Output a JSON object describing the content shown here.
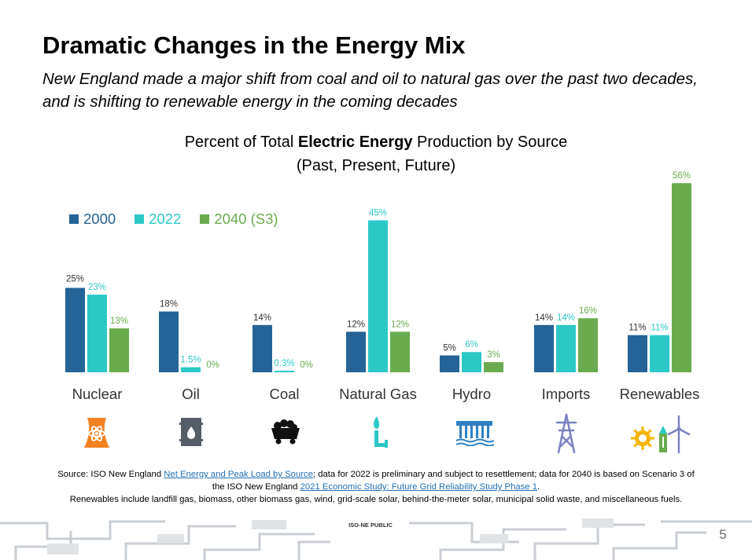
{
  "slide": {
    "title": "Dramatic Changes in the Energy Mix",
    "subtitle": "New England made a major shift from coal and oil to natural gas over the past two decades, and is shifting to renewable energy in the coming decades",
    "chart_title_plain1": "Percent of Total ",
    "chart_title_bold": "Electric Energy",
    "chart_title_plain2": " Production by Source",
    "chart_title_line2": "(Past, Present, Future)",
    "public_label": "ISO-NE PUBLIC",
    "page_number": "5"
  },
  "footer": {
    "l1_a": "Source: ISO New England ",
    "l1_link": "Net Energy and Peak Load by Source",
    "l1_b": "; data for 2022 is preliminary and subject to resettlement; data for 2040 is based on Scenario 3 of",
    "l2_a": "the ISO New England ",
    "l2_link": "2021 Economic Study: Future Grid Reliability Study Phase 1",
    "l2_b": ".",
    "l3": "Renewables include landfill gas, biomass, other biomass gas, wind, grid-scale solar, behind-the-meter solar, municipal solid waste, and miscellaneous fuels."
  },
  "icons": [
    "nuclear-plant-icon",
    "oil-drum-icon",
    "coal-cart-icon",
    "gas-flame-icon",
    "hydro-dam-icon",
    "transmission-tower-icon",
    "renewables-icon"
  ],
  "chart_data": {
    "type": "bar",
    "categories": [
      "Nuclear",
      "Oil",
      "Coal",
      "Natural Gas",
      "Hydro",
      "Imports",
      "Renewables"
    ],
    "series": [
      {
        "name": "2000",
        "color": "#256496",
        "values": [
          25,
          18,
          14,
          12,
          5,
          14,
          11
        ],
        "labels": [
          "25%",
          "18%",
          "14%",
          "12%",
          "5%",
          "14%",
          "11%"
        ]
      },
      {
        "name": "2022",
        "color": "#2cc8c6",
        "values": [
          23,
          1.5,
          0.3,
          45,
          6,
          14,
          11
        ],
        "labels": [
          "23%",
          "1.5%",
          "0.3%",
          "45%",
          "6%",
          "14%",
          "11%"
        ]
      },
      {
        "name": "2040 (S3)",
        "color": "#6aab4e",
        "values": [
          13,
          0,
          0,
          12,
          3,
          16,
          56
        ],
        "labels": [
          "13%",
          "0%",
          "0%",
          "12%",
          "3%",
          "16%",
          "56%"
        ]
      }
    ],
    "ylim": [
      0,
      56
    ]
  }
}
